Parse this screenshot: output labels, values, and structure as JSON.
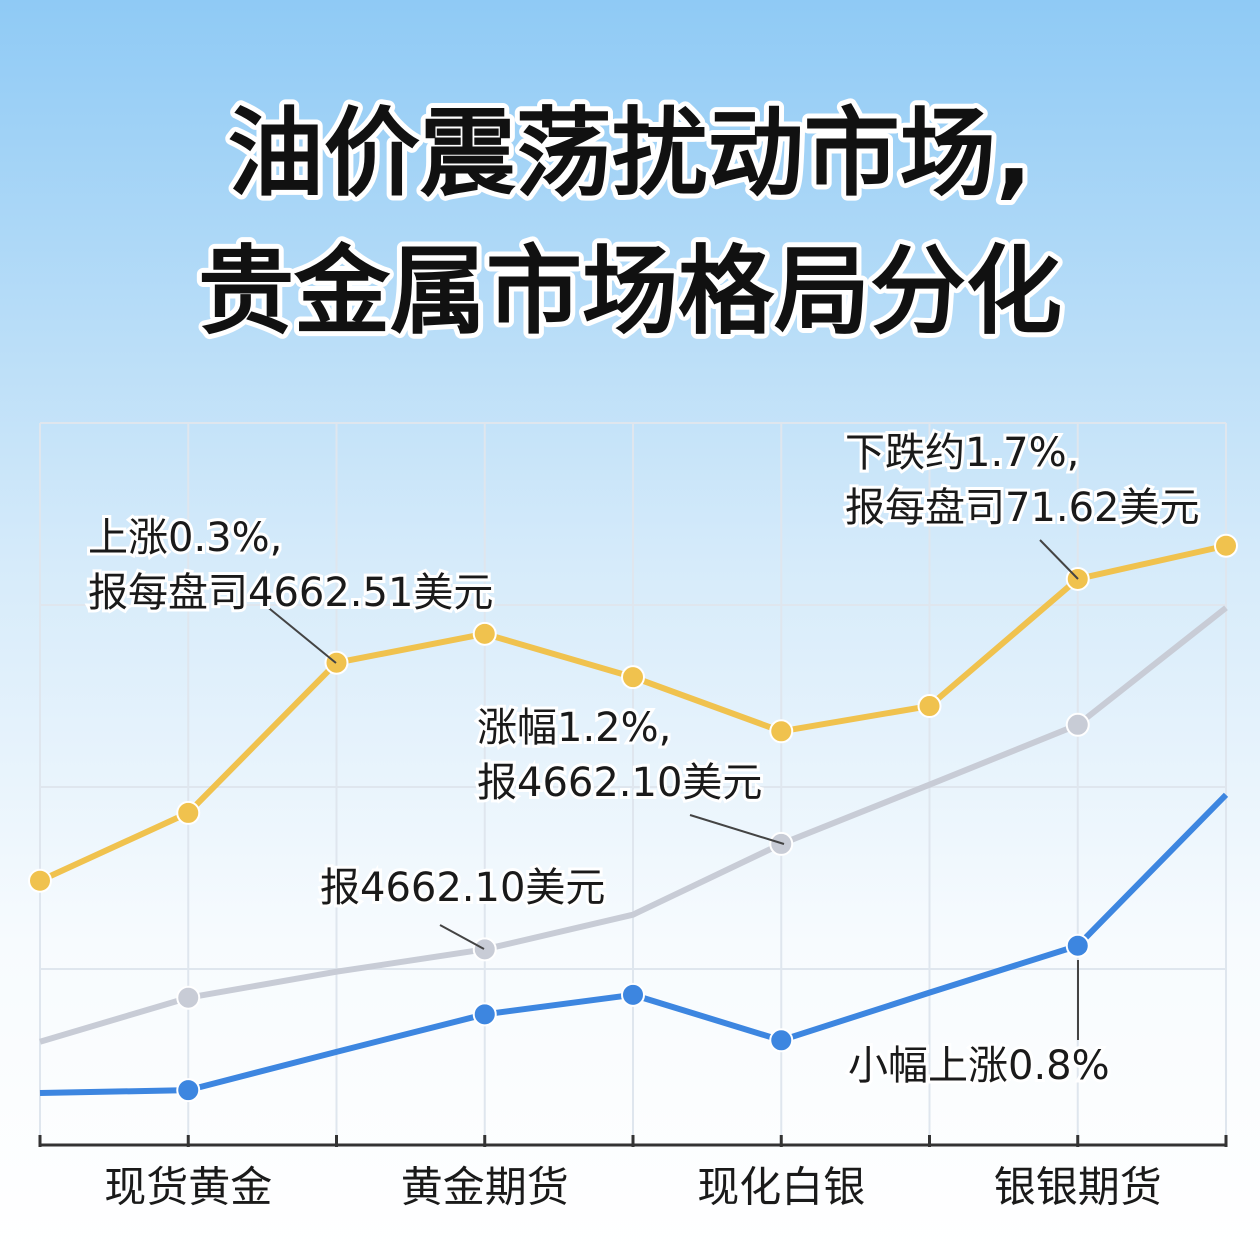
{
  "title_lines": [
    "油价震荡扰动市场,",
    "贵金属市场格局分化"
  ],
  "chart_data": {
    "type": "line",
    "categories": [
      null,
      "现货黄金",
      null,
      "黄金期货",
      null,
      "现化白银",
      null,
      "银银期货",
      null
    ],
    "ylim": [
      0,
      100
    ],
    "series": [
      {
        "color": "#f0c24e",
        "values": [
          36.6,
          46.0,
          66.8,
          70.8,
          64.8,
          57.3,
          60.8,
          78.4,
          83.0
        ],
        "marker_indices": [
          0,
          1,
          2,
          3,
          4,
          5,
          6,
          7,
          8
        ]
      },
      {
        "color": "#c8ccd6",
        "values": [
          14.3,
          20.4,
          24.0,
          27.1,
          31.9,
          41.7,
          49.9,
          58.2,
          74.4
        ],
        "marker_indices": [
          1,
          3,
          5,
          7
        ]
      },
      {
        "color": "#3d86e0",
        "values": [
          7.2,
          7.6,
          12.9,
          18.1,
          20.8,
          14.5,
          21.1,
          27.6,
          48.5
        ],
        "marker_indices": [
          1,
          3,
          4,
          5,
          7
        ]
      }
    ],
    "annotations": [
      {
        "lines": [
          "上涨0.3%,",
          "报每盘司4662.51美元"
        ]
      },
      {
        "lines": [
          "下跌约1.7%,",
          "报每盘司71.62美元"
        ]
      },
      {
        "lines": [
          "涨幅1.2%,",
          "报4662.10美元"
        ]
      },
      {
        "lines": [
          "报4662.10美元"
        ]
      },
      {
        "lines": [
          "小幅上涨0.8%"
        ]
      }
    ]
  }
}
